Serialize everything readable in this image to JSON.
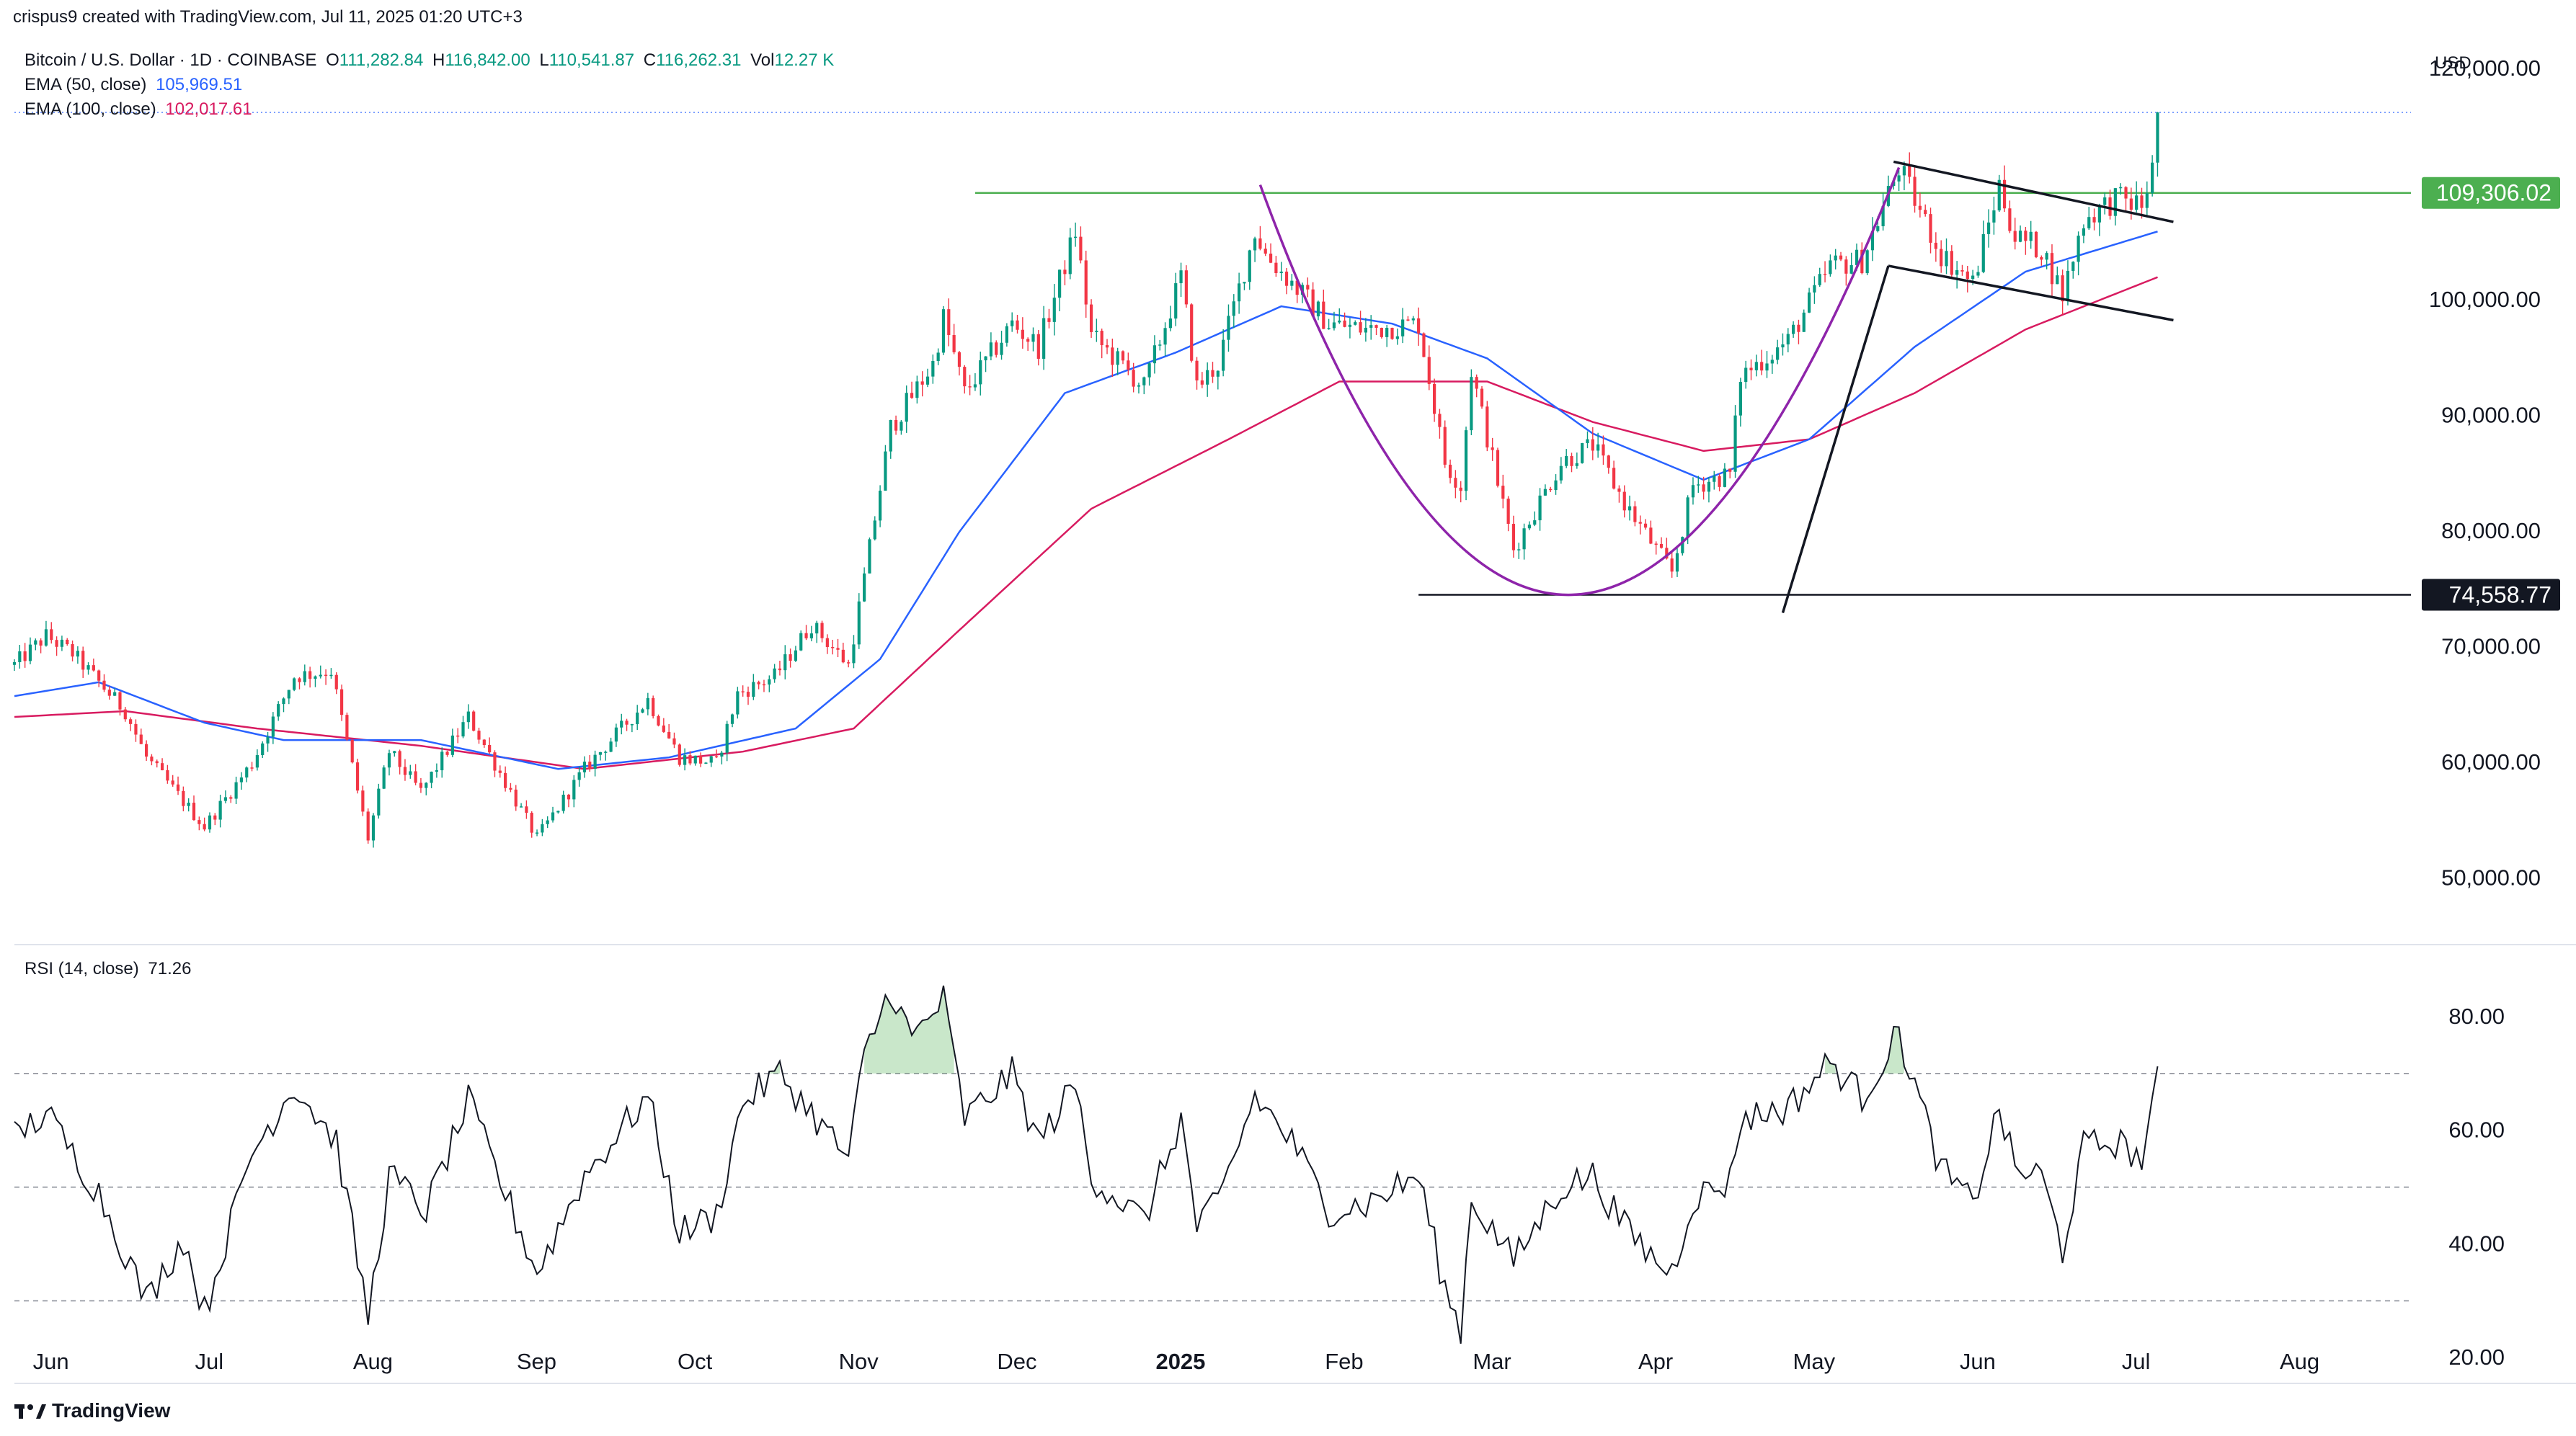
{
  "header": {
    "caption": "crispus9 created with TradingView.com, Jul 11, 2025 01:20 UTC+3",
    "symbol": "Bitcoin / U.S. Dollar · 1D · COINBASE",
    "open_label": "O",
    "open": "111,282.84",
    "high_label": "H",
    "high": "116,842.00",
    "low_label": "L",
    "low": "110,541.87",
    "close_label": "C",
    "close": "116,262.31",
    "vol_label": "Vol",
    "vol": "12.27 K",
    "ema50_label": "EMA (50, close)",
    "ema50_value": "105,969.51",
    "ema100_label": "EMA (100, close)",
    "ema100_value": "102,017.61",
    "currency": "USD",
    "rsi_label": "RSI (14, close)",
    "rsi_value": "71.26"
  },
  "footer": {
    "brand": "TradingView"
  },
  "colors": {
    "up": "#089981",
    "down": "#f23645",
    "ema50": "#2962ff",
    "ema100": "#d81b60",
    "arc": "#8e24aa",
    "resistance": "#4caf50",
    "support": "#131722",
    "rsi": "#131722"
  },
  "chart_data": [
    {
      "type": "candlestick",
      "title": "Bitcoin / U.S. Dollar · 1D · COINBASE",
      "ylim": [
        45000,
        121000
      ],
      "y_ticks": [
        50000,
        60000,
        70000,
        80000,
        90000,
        100000,
        110000,
        120000
      ],
      "y_tick_labels": [
        "50,000.00",
        "60,000.00",
        "70,000.00",
        "80,000.00",
        "90,000.00",
        "100,000.00",
        "",
        "120,000.00"
      ],
      "x_labels": [
        "Jun",
        "Jul",
        "Aug",
        "Sep",
        "Oct",
        "Nov",
        "Dec",
        "2025",
        "Feb",
        "Mar",
        "Apr",
        "May",
        "Jun",
        "Jul",
        "Aug"
      ],
      "x_label_dates": [
        "2024-06-01",
        "2024-07-01",
        "2024-08-01",
        "2024-09-01",
        "2024-10-01",
        "2024-11-01",
        "2024-12-01",
        "2025-01-01",
        "2025-02-01",
        "2025-03-01",
        "2025-04-01",
        "2025-05-01",
        "2025-06-01",
        "2025-07-01",
        "2025-08-01"
      ],
      "x_range": [
        "2024-05-30",
        "2025-08-27"
      ],
      "price_anchors": [
        [
          "2024-05-30",
          68500
        ],
        [
          "2024-06-05",
          71000
        ],
        [
          "2024-06-10",
          69500
        ],
        [
          "2024-06-20",
          64500
        ],
        [
          "2024-06-24",
          60500
        ],
        [
          "2024-07-05",
          54500
        ],
        [
          "2024-07-14",
          60000
        ],
        [
          "2024-07-22",
          67500
        ],
        [
          "2024-07-29",
          68000
        ],
        [
          "2024-08-05",
          53500
        ],
        [
          "2024-08-09",
          61000
        ],
        [
          "2024-08-15",
          57500
        ],
        [
          "2024-08-24",
          64000
        ],
        [
          "2024-09-06",
          53500
        ],
        [
          "2024-09-15",
          59500
        ],
        [
          "2024-09-27",
          65500
        ],
        [
          "2024-10-03",
          60500
        ],
        [
          "2024-10-10",
          60000
        ],
        [
          "2024-10-14",
          66000
        ],
        [
          "2024-10-21",
          67500
        ],
        [
          "2024-10-28",
          72000
        ],
        [
          "2024-11-04",
          68500
        ],
        [
          "2024-11-07",
          76000
        ],
        [
          "2024-11-12",
          89000
        ],
        [
          "2024-11-20",
          94500
        ],
        [
          "2024-11-22",
          98500
        ],
        [
          "2024-11-26",
          92000
        ],
        [
          "2024-12-05",
          98000
        ],
        [
          "2024-12-10",
          96000
        ],
        [
          "2024-12-17",
          106000
        ],
        [
          "2024-12-20",
          97000
        ],
        [
          "2024-12-30",
          92500
        ],
        [
          "2025-01-06",
          102000
        ],
        [
          "2025-01-09",
          92500
        ],
        [
          "2025-01-13",
          94500
        ],
        [
          "2025-01-20",
          106000
        ],
        [
          "2025-01-22",
          104000
        ],
        [
          "2025-01-27",
          101500
        ],
        [
          "2025-02-03",
          98000
        ],
        [
          "2025-02-10",
          97500
        ],
        [
          "2025-02-20",
          98000
        ],
        [
          "2025-02-25",
          86000
        ],
        [
          "2025-02-28",
          84000
        ],
        [
          "2025-03-02",
          94000
        ],
        [
          "2025-03-10",
          78500
        ],
        [
          "2025-03-19",
          86000
        ],
        [
          "2025-03-25",
          87500
        ],
        [
          "2025-03-31",
          82500
        ],
        [
          "2025-04-06",
          78500
        ],
        [
          "2025-04-09",
          76500
        ],
        [
          "2025-04-13",
          84000
        ],
        [
          "2025-04-20",
          85000
        ],
        [
          "2025-04-22",
          93500
        ],
        [
          "2025-05-01",
          96500
        ],
        [
          "2025-05-09",
          103000
        ],
        [
          "2025-05-15",
          103500
        ],
        [
          "2025-05-22",
          111500
        ],
        [
          "2025-05-30",
          104000
        ],
        [
          "2025-06-05",
          101500
        ],
        [
          "2025-06-10",
          110000
        ],
        [
          "2025-06-13",
          105500
        ],
        [
          "2025-06-18",
          104500
        ],
        [
          "2025-06-22",
          100500
        ],
        [
          "2025-06-26",
          107000
        ],
        [
          "2025-07-02",
          108800
        ],
        [
          "2025-07-07",
          108200
        ],
        [
          "2025-07-09",
          111300
        ],
        [
          "2025-07-10",
          116262
        ]
      ],
      "ema_anchors": {
        "ema50": [
          [
            "2024-05-30",
            65800
          ],
          [
            "2024-06-15",
            67000
          ],
          [
            "2024-07-05",
            63500
          ],
          [
            "2024-07-20",
            62000
          ],
          [
            "2024-08-15",
            62000
          ],
          [
            "2024-09-10",
            59500
          ],
          [
            "2024-10-01",
            60500
          ],
          [
            "2024-10-25",
            63000
          ],
          [
            "2024-11-10",
            69000
          ],
          [
            "2024-11-25",
            80000
          ],
          [
            "2024-12-15",
            92000
          ],
          [
            "2025-01-05",
            95500
          ],
          [
            "2025-01-25",
            99500
          ],
          [
            "2025-02-15",
            98000
          ],
          [
            "2025-03-05",
            95000
          ],
          [
            "2025-03-25",
            88500
          ],
          [
            "2025-04-15",
            84500
          ],
          [
            "2025-05-05",
            88000
          ],
          [
            "2025-05-25",
            96000
          ],
          [
            "2025-06-15",
            102500
          ],
          [
            "2025-07-10",
            105970
          ]
        ],
        "ema100": [
          [
            "2024-05-30",
            64000
          ],
          [
            "2024-06-20",
            64500
          ],
          [
            "2024-07-15",
            63000
          ],
          [
            "2024-08-15",
            61500
          ],
          [
            "2024-09-15",
            59500
          ],
          [
            "2024-10-15",
            61000
          ],
          [
            "2024-11-05",
            63000
          ],
          [
            "2024-11-25",
            71500
          ],
          [
            "2024-12-20",
            82000
          ],
          [
            "2025-01-15",
            88000
          ],
          [
            "2025-02-05",
            93000
          ],
          [
            "2025-03-05",
            93000
          ],
          [
            "2025-03-25",
            89500
          ],
          [
            "2025-04-15",
            87000
          ],
          [
            "2025-05-05",
            88000
          ],
          [
            "2025-05-25",
            92000
          ],
          [
            "2025-06-15",
            97500
          ],
          [
            "2025-07-10",
            102018
          ]
        ]
      },
      "price_labels": [
        {
          "value": 109306.02,
          "text": "109,306.02",
          "color": "#4caf50"
        },
        {
          "value": 74558.77,
          "text": "74,558.77",
          "color": "#131722"
        }
      ],
      "drawings": {
        "resistance_line": {
          "y": 109306.02,
          "from": "2024-11-28",
          "to": "2025-08-27"
        },
        "support_line": {
          "y": 74558.77,
          "from": "2025-02-20",
          "to": "2025-08-27"
        },
        "cup_arc": [
          [
            "2025-01-21",
            110000
          ],
          [
            "2025-03-21",
            74558.77
          ],
          [
            "2025-05-22",
            111500
          ]
        ],
        "flag_upper": [
          [
            "2025-05-21",
            112000
          ],
          [
            "2025-07-13",
            106800
          ]
        ],
        "flag_lower": [
          [
            "2025-05-20",
            103000
          ],
          [
            "2025-07-13",
            98300
          ]
        ],
        "pole": [
          [
            "2025-04-30",
            73000
          ],
          [
            "2025-05-20",
            103000
          ]
        ]
      }
    },
    {
      "type": "line",
      "title": "RSI (14, close)",
      "ylim": [
        18,
        89
      ],
      "y_ticks": [
        20,
        40,
        60,
        80
      ],
      "y_tick_labels": [
        "20.00",
        "40.00",
        "60.00",
        "80.00"
      ],
      "bands": [
        30,
        50,
        70
      ],
      "overbought_fill": 70,
      "rsi_anchors": [
        [
          "2024-05-30",
          59
        ],
        [
          "2024-06-05",
          63
        ],
        [
          "2024-06-15",
          49
        ],
        [
          "2024-06-24",
          30
        ],
        [
          "2024-07-01",
          41
        ],
        [
          "2024-07-05",
          28
        ],
        [
          "2024-07-14",
          56
        ],
        [
          "2024-07-22",
          68
        ],
        [
          "2024-07-30",
          58
        ],
        [
          "2024-08-05",
          27
        ],
        [
          "2024-08-09",
          52
        ],
        [
          "2024-08-16",
          46
        ],
        [
          "2024-08-24",
          65
        ],
        [
          "2024-09-06",
          35
        ],
        [
          "2024-09-15",
          52
        ],
        [
          "2024-09-27",
          66
        ],
        [
          "2024-10-03",
          42
        ],
        [
          "2024-10-10",
          45
        ],
        [
          "2024-10-15",
          65
        ],
        [
          "2024-10-22",
          70
        ],
        [
          "2024-11-04",
          55
        ],
        [
          "2024-11-07",
          73
        ],
        [
          "2024-11-12",
          85
        ],
        [
          "2024-11-16",
          76
        ],
        [
          "2024-11-22",
          83
        ],
        [
          "2024-11-26",
          62
        ],
        [
          "2024-12-05",
          70
        ],
        [
          "2024-12-10",
          58
        ],
        [
          "2024-12-17",
          68
        ],
        [
          "2024-12-20",
          52
        ],
        [
          "2024-12-30",
          44
        ],
        [
          "2025-01-06",
          62
        ],
        [
          "2025-01-09",
          43
        ],
        [
          "2025-01-13",
          47
        ],
        [
          "2025-01-20",
          66
        ],
        [
          "2025-01-27",
          58
        ],
        [
          "2025-02-03",
          46
        ],
        [
          "2025-02-10",
          47
        ],
        [
          "2025-02-20",
          52
        ],
        [
          "2025-02-25",
          32
        ],
        [
          "2025-02-28",
          25
        ],
        [
          "2025-03-02",
          48
        ],
        [
          "2025-03-10",
          37
        ],
        [
          "2025-03-19",
          50
        ],
        [
          "2025-03-25",
          52
        ],
        [
          "2025-03-31",
          43
        ],
        [
          "2025-04-06",
          37
        ],
        [
          "2025-04-09",
          35
        ],
        [
          "2025-04-13",
          48
        ],
        [
          "2025-04-20",
          51
        ],
        [
          "2025-04-22",
          62
        ],
        [
          "2025-05-01",
          64
        ],
        [
          "2025-05-09",
          72
        ],
        [
          "2025-05-15",
          66
        ],
        [
          "2025-05-22",
          77
        ],
        [
          "2025-05-30",
          53
        ],
        [
          "2025-06-05",
          47
        ],
        [
          "2025-06-10",
          64
        ],
        [
          "2025-06-13",
          53
        ],
        [
          "2025-06-18",
          52
        ],
        [
          "2025-06-22",
          39
        ],
        [
          "2025-06-26",
          57
        ],
        [
          "2025-07-02",
          58
        ],
        [
          "2025-07-07",
          55
        ],
        [
          "2025-07-09",
          63
        ],
        [
          "2025-07-10",
          71.26
        ]
      ]
    }
  ]
}
